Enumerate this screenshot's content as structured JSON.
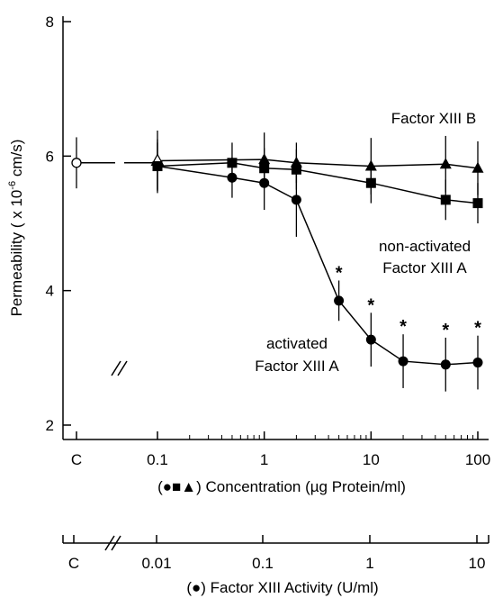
{
  "chart_data": {
    "type": "line",
    "title": "",
    "ylabel_main": "Permeability ( x 10",
    "ylabel_exp": "-6",
    "ylabel_unit": " cm/s)",
    "ylim": [
      2,
      8
    ],
    "yticks": [
      2,
      4,
      6,
      8
    ],
    "x_axis_scale": "log",
    "x_ticks": [
      {
        "label": "C",
        "value": "control"
      },
      {
        "label": "0.1",
        "value": 0.1
      },
      {
        "label": "1",
        "value": 1
      },
      {
        "label": "10",
        "value": 10
      },
      {
        "label": "100",
        "value": 100
      }
    ],
    "xlabel_prefix": "(",
    "xlabel_markers": "●■▲",
    "xlabel": ") Concentration (µg Protein/ml)",
    "secondary_axis": {
      "ticks": [
        "C",
        "0.01",
        "0.1",
        "1",
        "10"
      ],
      "tick_values": [
        0.01,
        0.1,
        1,
        10
      ],
      "label_prefix": "(",
      "label_marker": "●",
      "label": ") Factor XIII Activity (U/ml)"
    },
    "control": {
      "y": 5.9,
      "err": 0.38,
      "marker": "open-circle"
    },
    "series": [
      {
        "name": "Factor XIII B",
        "marker": "triangle",
        "x": [
          0.1,
          1,
          2,
          10,
          50,
          100
        ],
        "y": [
          5.93,
          5.95,
          5.9,
          5.85,
          5.88,
          5.82
        ],
        "err": [
          0.45,
          0.4,
          0.3,
          0.42,
          0.42,
          0.4
        ]
      },
      {
        "name": "non-activated Factor XIII A",
        "label_lines": [
          "non-activated",
          "Factor XIII A"
        ],
        "marker": "square",
        "x": [
          0.1,
          0.5,
          1,
          2,
          10,
          50,
          100
        ],
        "y": [
          5.85,
          5.9,
          5.82,
          5.8,
          5.6,
          5.35,
          5.3
        ],
        "err": [
          0.35,
          0.3,
          0.3,
          0.3,
          0.3,
          0.3,
          0.3
        ]
      },
      {
        "name": "activated Factor XIII A",
        "label_lines": [
          "activated",
          "Factor XIII A"
        ],
        "marker": "circle",
        "x": [
          0.1,
          0.5,
          1,
          2,
          5,
          10,
          20,
          50,
          100
        ],
        "y": [
          5.85,
          5.68,
          5.6,
          5.35,
          3.85,
          3.27,
          2.95,
          2.9,
          2.93
        ],
        "err": [
          0.4,
          0.3,
          0.4,
          0.55,
          0.3,
          0.4,
          0.4,
          0.4,
          0.4
        ]
      }
    ],
    "significance": {
      "symbol": "*",
      "x": [
        5,
        10,
        20,
        50,
        100
      ]
    }
  }
}
